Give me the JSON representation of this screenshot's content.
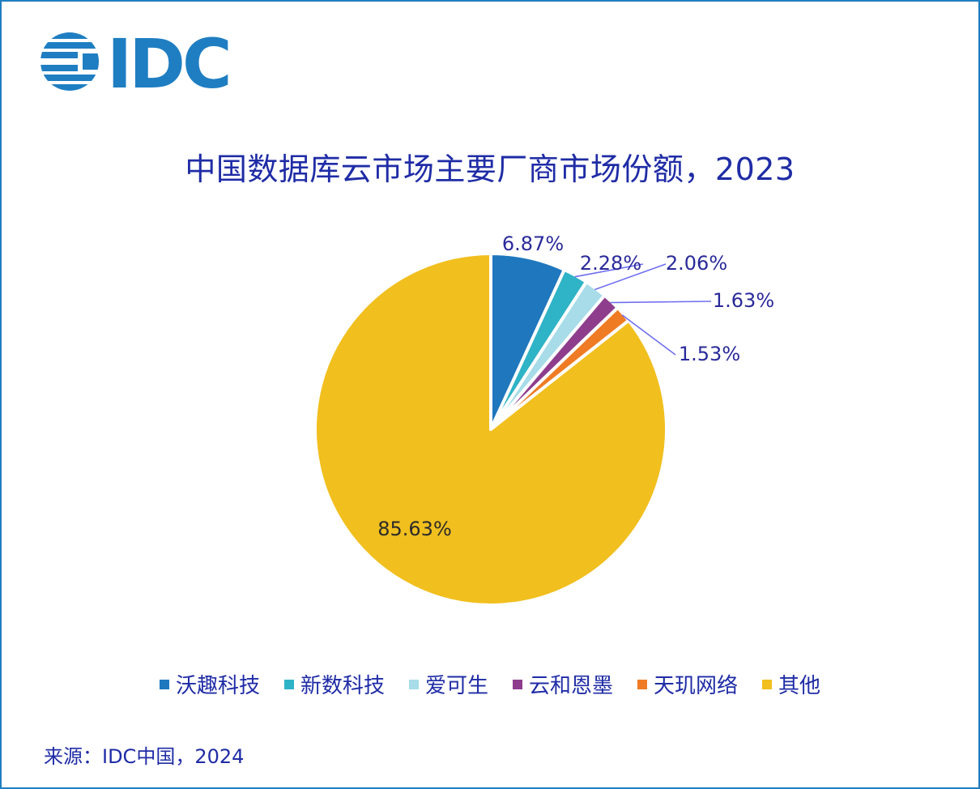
{
  "logo": {
    "text": "IDC",
    "color": "#1f7ec2"
  },
  "chart_data": {
    "type": "pie",
    "title": "中国数据库云市场主要厂商市场份额，2023",
    "unit": "%",
    "slices": [
      {
        "name": "沃趣科技",
        "value": 6.87,
        "label": "6.87%",
        "color": "#1f77bd"
      },
      {
        "name": "新数科技",
        "value": 2.28,
        "label": "2.28%",
        "color": "#2fb3c6"
      },
      {
        "name": "爱可生",
        "value": 2.06,
        "label": "2.06%",
        "color": "#a7dce8"
      },
      {
        "name": "云和恩墨",
        "value": 1.63,
        "label": "1.63%",
        "color": "#8e3d8d"
      },
      {
        "name": "天玑网络",
        "value": 1.53,
        "label": "1.53%",
        "color": "#ef7c24"
      },
      {
        "name": "其他",
        "value": 85.63,
        "label": "85.63%",
        "color": "#f1bf1e"
      }
    ],
    "start_angle": "12 o'clock",
    "direction": "clockwise",
    "legend_position": "bottom"
  },
  "source": "来源：IDC中国，2024"
}
